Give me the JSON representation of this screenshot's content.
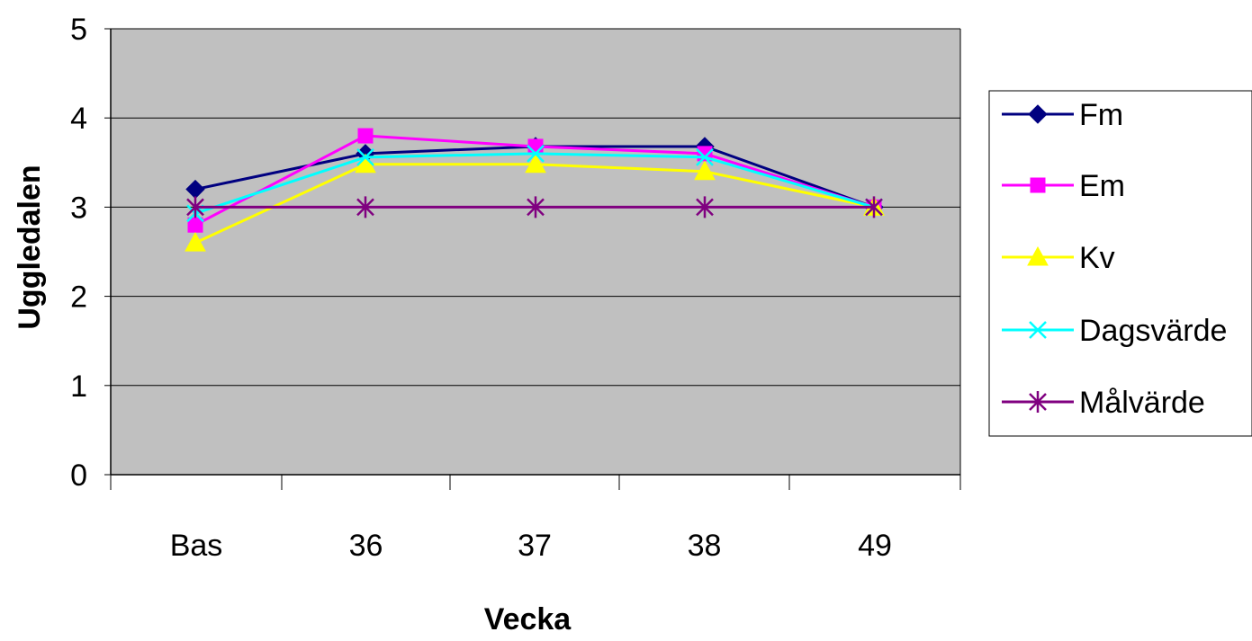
{
  "chart_data": {
    "type": "line",
    "categories": [
      "Bas",
      "36",
      "37",
      "38",
      "49"
    ],
    "xlabel": "Vecka",
    "ylabel": "Uggledalen",
    "ylim": [
      0,
      5
    ],
    "yticks": [
      "0",
      "1",
      "2",
      "3",
      "4",
      "5"
    ],
    "grid": true,
    "plot_background": "#C0C0C0",
    "legend_position": "right",
    "series": [
      {
        "name": "Fm",
        "values": [
          3.2,
          3.6,
          3.68,
          3.68,
          3.0
        ],
        "color": "#000080",
        "marker": "diamond"
      },
      {
        "name": "Em",
        "values": [
          2.8,
          3.8,
          3.68,
          3.6,
          3.0
        ],
        "color": "#FF00FF",
        "marker": "square"
      },
      {
        "name": "Kv",
        "values": [
          2.6,
          3.48,
          3.48,
          3.4,
          3.0
        ],
        "color": "#FFFF00",
        "marker": "triangle"
      },
      {
        "name": "Dagsvärde",
        "values": [
          2.93,
          3.56,
          3.6,
          3.56,
          3.0
        ],
        "color": "#00FFFF",
        "marker": "x"
      },
      {
        "name": "Målvärde",
        "values": [
          3.0,
          3.0,
          3.0,
          3.0,
          3.0
        ],
        "color": "#800080",
        "marker": "asterisk"
      }
    ]
  }
}
